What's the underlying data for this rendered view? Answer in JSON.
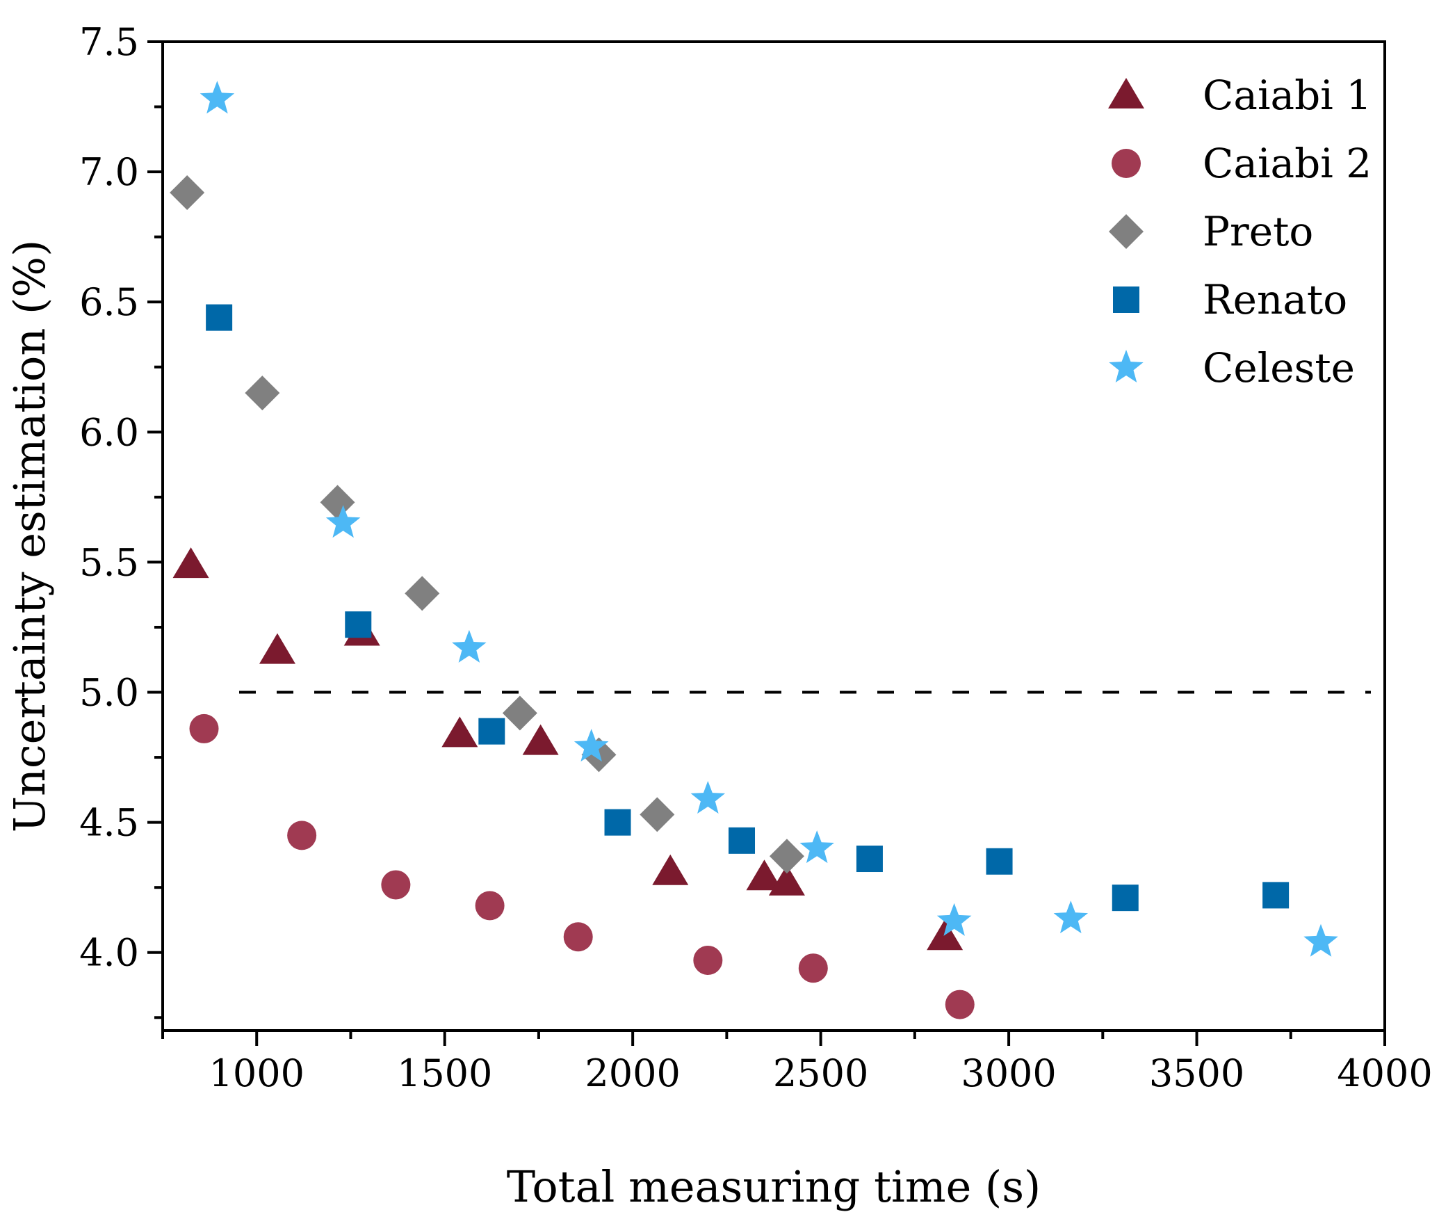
{
  "chart_data": {
    "type": "scatter",
    "title": "",
    "xlabel": "Total measuring time (s)",
    "ylabel": "Uncertainty estimation (%)",
    "xlim": [
      750,
      4000
    ],
    "ylim": [
      3.7,
      7.5
    ],
    "x_ticks": [
      1000,
      1500,
      2000,
      2500,
      3000,
      3500,
      4000
    ],
    "y_ticks": [
      4.0,
      4.5,
      5.0,
      5.5,
      6.0,
      6.5,
      7.0,
      7.5
    ],
    "x_tick_labels": [
      "1000",
      "1500",
      "2000",
      "2500",
      "3000",
      "3500",
      "4000"
    ],
    "y_tick_labels": [
      "4.0",
      "4.5",
      "5.0",
      "5.5",
      "6.0",
      "6.5",
      "7.0",
      "7.5"
    ],
    "reference_line": {
      "y": 5.0,
      "style": "dashed"
    },
    "legend_position": "top-right",
    "grid": false,
    "series": [
      {
        "name": "Caiabi 1",
        "marker": "triangle",
        "color": "#7b1a2e",
        "x": [
          825,
          1055,
          1280,
          1540,
          1755,
          2100,
          2350,
          2410,
          2830
        ],
        "y": [
          5.49,
          5.16,
          5.23,
          4.84,
          4.81,
          4.31,
          4.29,
          4.27,
          4.06
        ]
      },
      {
        "name": "Caiabi 2",
        "marker": "circle",
        "color": "#a03a52",
        "x": [
          860,
          1120,
          1370,
          1620,
          1855,
          2200,
          2480,
          2870
        ],
        "y": [
          4.86,
          4.45,
          4.26,
          4.18,
          4.06,
          3.97,
          3.94,
          3.8
        ]
      },
      {
        "name": "Preto",
        "marker": "diamond",
        "color": "#808080",
        "x": [
          815,
          1015,
          1215,
          1440,
          1700,
          1910,
          2065,
          2410
        ],
        "y": [
          6.92,
          6.15,
          5.73,
          5.38,
          4.92,
          4.76,
          4.53,
          4.37
        ]
      },
      {
        "name": "Renato",
        "marker": "square",
        "color": "#0068a8",
        "x": [
          900,
          1270,
          1625,
          1960,
          2290,
          2630,
          2975,
          3310,
          3710
        ],
        "y": [
          6.44,
          5.26,
          4.85,
          4.5,
          4.43,
          4.36,
          4.35,
          4.21,
          4.22
        ]
      },
      {
        "name": "Celeste",
        "marker": "star",
        "color": "#4db8f5",
        "x": [
          895,
          1230,
          1565,
          1890,
          2200,
          2490,
          2855,
          3165,
          3830
        ],
        "y": [
          7.28,
          5.65,
          5.17,
          4.79,
          4.59,
          4.4,
          4.12,
          4.13,
          4.04
        ]
      }
    ]
  }
}
